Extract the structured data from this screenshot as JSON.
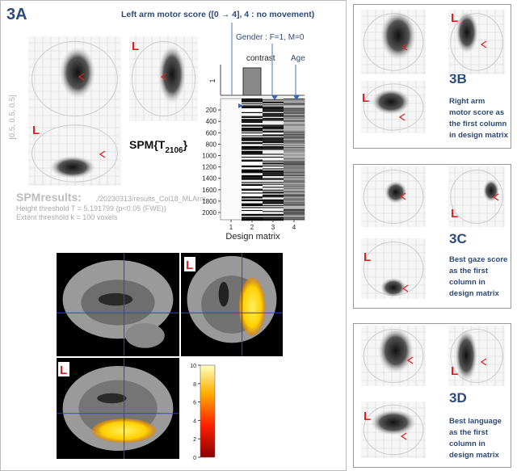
{
  "panel_3a": {
    "label": "3A",
    "covariate_label": "Left arm motor score ([0 → 4], 4 : no movement)",
    "gender_label": "Gender : F=1, M=0",
    "contrast_label": "contrast",
    "age_label": "Age",
    "origin": "[0.5, 0.5, 0.5]",
    "spm_stat": {
      "base": "SPM{T",
      "sub": "2106",
      "close": "}"
    },
    "results_title": "SPMresults:",
    "results_path": "./20230313/results_Col18_MLArm",
    "height_threshold": "Height threshold T = 5.191799  {p<0.05 (FWE)}",
    "extent_threshold": "Extent threshold k = 100 voxels",
    "contrast_tick": "1",
    "design_matrix": {
      "title": "Design matrix",
      "yticks": [
        200,
        400,
        600,
        800,
        1000,
        1200,
        1400,
        1600,
        1800,
        2000
      ],
      "xticks": [
        1,
        2,
        3,
        4
      ]
    },
    "colorbar": {
      "ticks": [
        0,
        2,
        4,
        6,
        8,
        10
      ]
    },
    "side_marker": "L"
  },
  "panel_3b": {
    "label": "3B",
    "caption": [
      "Right arm",
      "motor score as",
      "the first column",
      "in design matrix"
    ],
    "side_marker": "L"
  },
  "panel_3c": {
    "label": "3C",
    "caption": [
      "Best gaze score",
      "as the first",
      "column in",
      "design matrix"
    ],
    "side_marker": "L"
  },
  "panel_3d": {
    "label": "3D",
    "caption": [
      "Best language",
      "as the first",
      "column in",
      "design matrix"
    ],
    "side_marker": "L"
  }
}
